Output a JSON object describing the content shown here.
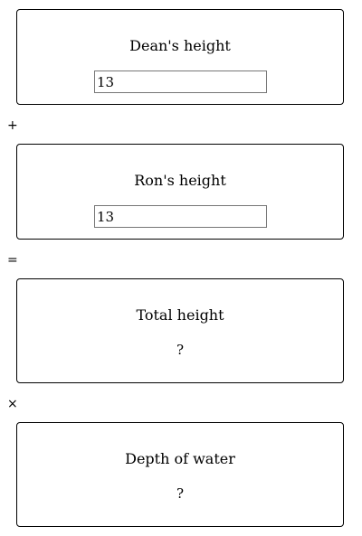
{
  "cards": [
    {
      "title": "Dean's height",
      "input_value": "13"
    },
    {
      "title": "Ron's height",
      "input_value": "13"
    },
    {
      "title": "Total height",
      "value": "?"
    },
    {
      "title": "Depth of water",
      "value": "?"
    }
  ],
  "operators": {
    "plus": "+",
    "equals": "=",
    "times": "×"
  }
}
